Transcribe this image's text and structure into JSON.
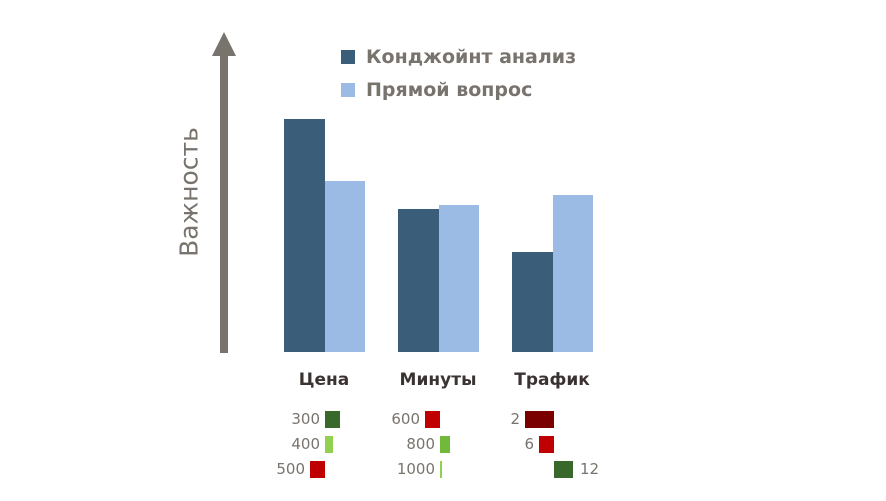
{
  "chart_data": {
    "type": "bar",
    "title": "",
    "ylabel": "Важность",
    "xlabel": "",
    "categories": [
      "Цена",
      "Минуты",
      "Трафик"
    ],
    "series": [
      {
        "name": "Конджойнт анализ",
        "color": "#3a5e7a",
        "values": [
          49,
          30,
          21
        ]
      },
      {
        "name": "Прямой вопрос",
        "color": "#9bbbe4",
        "values": [
          36,
          31,
          33
        ]
      }
    ],
    "ylim": [
      0,
      50
    ],
    "y_ticks_shown": false,
    "grid": false,
    "legend_position": "top",
    "value_units": "relative importance (estimated %, no axis scale shown)",
    "attribute_levels": [
      {
        "attribute": "Цена",
        "levels": [
          {
            "label": "300",
            "color": "#38692a",
            "utility": 15
          },
          {
            "label": "400",
            "color": "#92d050",
            "utility": 8
          },
          {
            "label": "500",
            "color": "#c00000",
            "utility": -15
          }
        ]
      },
      {
        "attribute": "Минуты",
        "levels": [
          {
            "label": "600",
            "color": "#c00000",
            "utility": -15
          },
          {
            "label": "800",
            "color": "#70b93a",
            "utility": 10
          },
          {
            "label": "1000",
            "color": "#92d050",
            "utility": 2
          }
        ]
      },
      {
        "attribute": "Трафик",
        "levels": [
          {
            "label": "2",
            "color": "#7a0000",
            "utility": -29
          },
          {
            "label": "6",
            "color": "#c00000",
            "utility": -15
          },
          {
            "label": "12",
            "color": "#38692a",
            "utility": 19
          }
        ]
      }
    ]
  },
  "axis": {
    "y_label": "Важность",
    "color": "#78736d"
  },
  "legend": [
    {
      "label": "Конджойнт анализ",
      "color": "#3a5e7a"
    },
    {
      "label": "Прямой вопрос",
      "color": "#9bbbe4"
    }
  ],
  "categories": [
    {
      "label": "Цена"
    },
    {
      "label": "Минуты"
    },
    {
      "label": "Трафик"
    }
  ]
}
